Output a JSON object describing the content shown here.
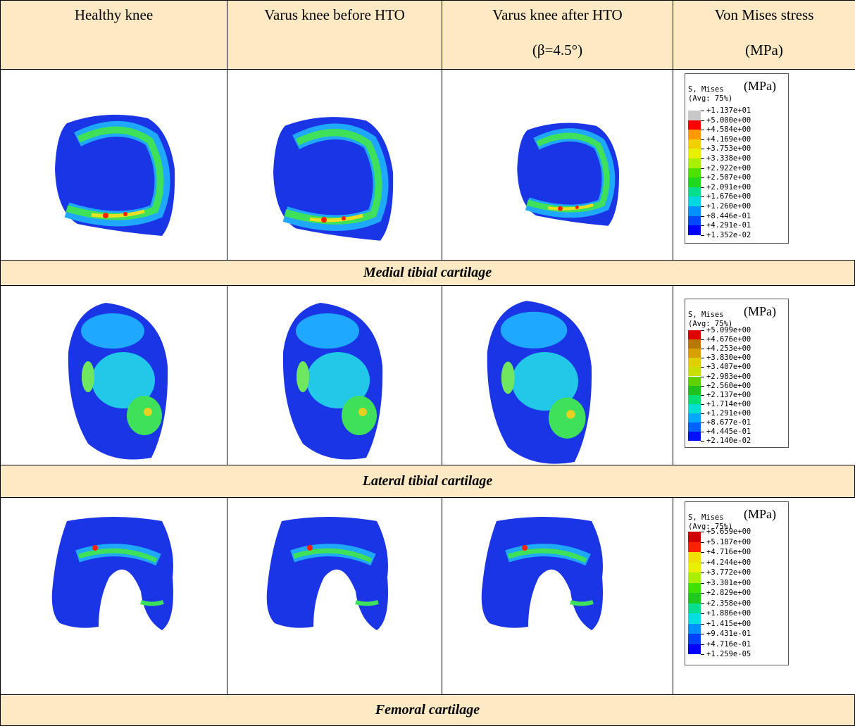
{
  "header": {
    "columns": [
      [
        "Healthy knee"
      ],
      [
        "Varus knee before HTO"
      ],
      [
        "Varus knee after HTO",
        "(β=4.5°)"
      ],
      [
        "Von Mises stress",
        "(MPa)"
      ]
    ]
  },
  "rows": [
    {
      "caption": "Medial tibial cartilage",
      "legend": {
        "title": "S, Mises",
        "unit": "(MPa)",
        "averaging": "(Avg: 75%)",
        "labels": [
          "+1.137e+01",
          "+5.000e+00",
          "+4.584e+00",
          "+4.169e+00",
          "+3.753e+00",
          "+3.338e+00",
          "+2.922e+00",
          "+2.507e+00",
          "+2.091e+00",
          "+1.676e+00",
          "+1.260e+00",
          "+8.446e-01",
          "+4.291e-01",
          "+1.352e-02"
        ]
      }
    },
    {
      "caption": "Lateral tibial cartilage",
      "legend": {
        "title": "S, Mises",
        "unit": "(MPa)",
        "averaging": "(Avg: 75%)",
        "labels": [
          "+5.099e+00",
          "+4.676e+00",
          "+4.253e+00",
          "+3.830e+00",
          "+3.407e+00",
          "+2.983e+00",
          "+2.560e+00",
          "+2.137e+00",
          "+1.714e+00",
          "+1.291e+00",
          "+8.677e-01",
          "+4.445e-01",
          "+2.140e-02"
        ]
      }
    },
    {
      "caption": "Femoral cartilage",
      "legend": {
        "title": "S, Mises",
        "unit": "(MPa)",
        "averaging": "(Avg: 75%)",
        "labels": [
          "+5.659e+00",
          "+5.187e+00",
          "+4.716e+00",
          "+4.244e+00",
          "+3.772e+00",
          "+3.301e+00",
          "+2.829e+00",
          "+2.358e+00",
          "+1.886e+00",
          "+1.415e+00",
          "+9.431e-01",
          "+4.716e-01",
          "+1.259e-05"
        ]
      }
    }
  ]
}
